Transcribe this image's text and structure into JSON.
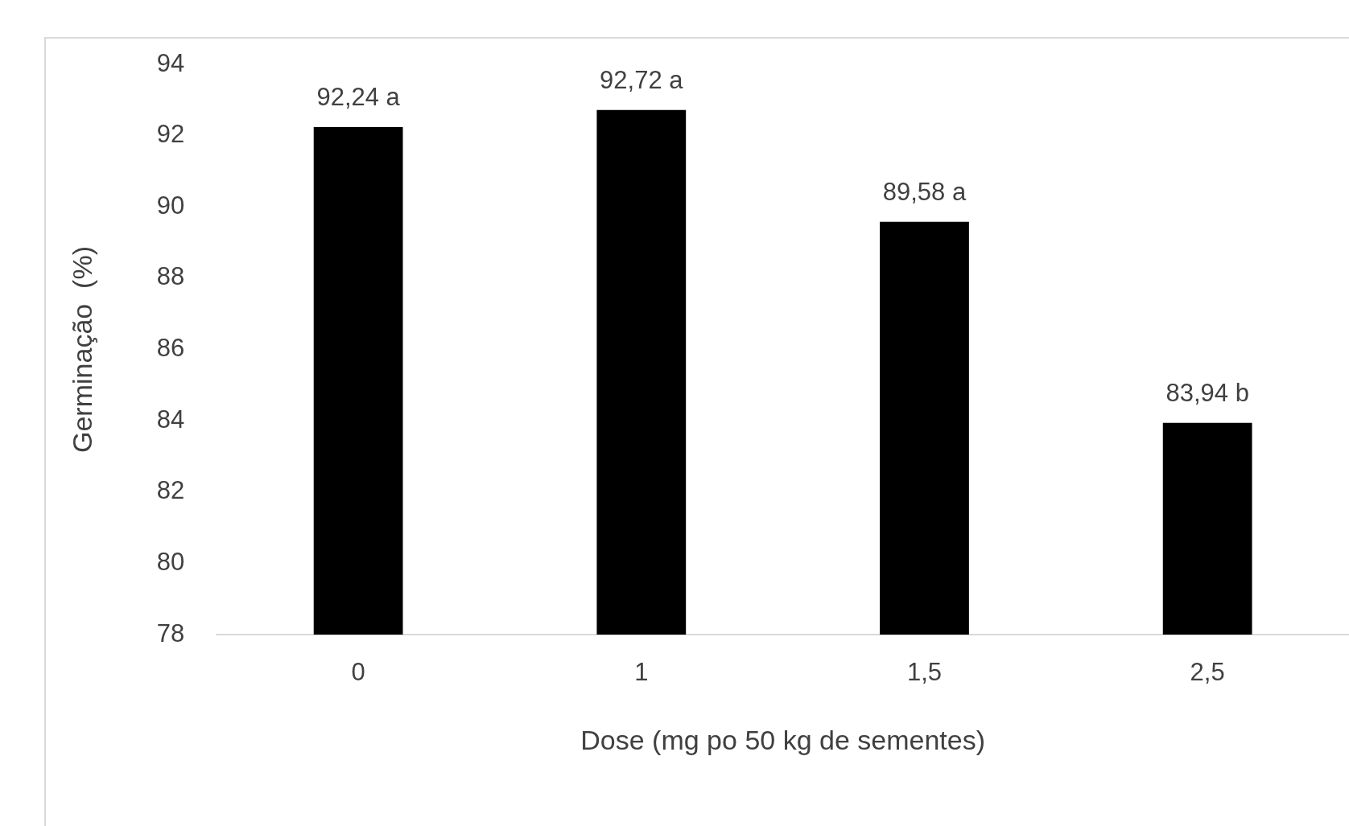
{
  "chart_data": {
    "type": "bar",
    "xlabel": "Dose (mg po 50 kg de sementes)",
    "ylabel": "Germinação  (%)",
    "categories": [
      "0",
      "1",
      "1,5",
      "2,5"
    ],
    "values": [
      92.24,
      92.72,
      89.58,
      83.94
    ],
    "value_labels": [
      "92,24 a",
      "92,72 a",
      "89,58 a",
      "83,94 b"
    ],
    "color": "#000000",
    "ylim": [
      78,
      94
    ],
    "yticks": [
      78,
      80,
      82,
      84,
      86,
      88,
      90,
      92,
      94
    ],
    "grid": false,
    "legend": false
  }
}
